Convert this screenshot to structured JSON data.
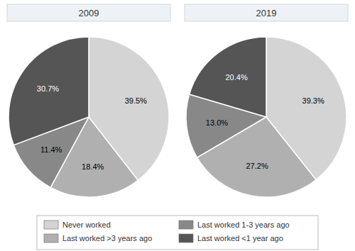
{
  "chart_data": {
    "type": "pie",
    "categories": [
      "Never worked",
      "Last worked >3 years ago",
      "Last worked 1-3 years ago",
      "Last worked <1 year ago"
    ],
    "colors": [
      "#d4d4d4",
      "#b0b0b0",
      "#888888",
      "#555555"
    ],
    "series": [
      {
        "name": "2009",
        "values": [
          39.5,
          18.4,
          11.4,
          30.7
        ],
        "value_labels": [
          "39.5%",
          "18.4%",
          "11.4%",
          "30.7%"
        ]
      },
      {
        "name": "2019",
        "values": [
          39.3,
          27.2,
          13.0,
          20.4
        ],
        "value_labels": [
          "39.3%",
          "27.2%",
          "13.0%",
          "20.4%"
        ]
      }
    ],
    "data_labels": true,
    "legend": "bottom"
  }
}
